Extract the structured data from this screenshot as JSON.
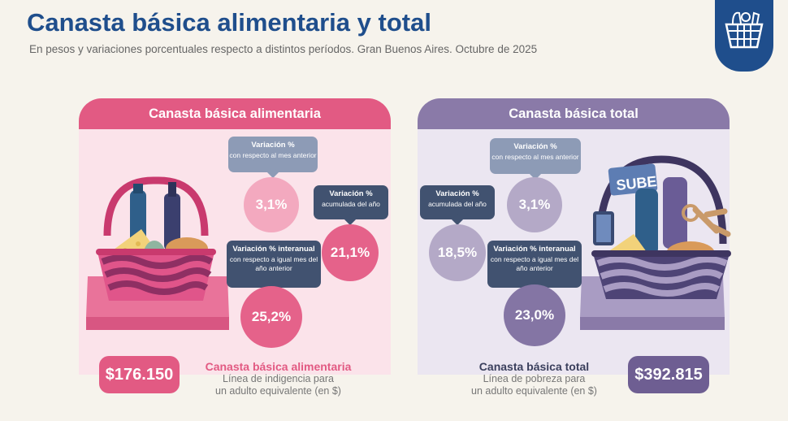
{
  "header": {
    "title": "Canasta básica alimentaria y total",
    "subtitle": "En pesos y variaciones porcentuales respecto a distintos períodos. Gran Buenos Aires. Octubre de 2025",
    "logo_icon": "basket-icon"
  },
  "colors": {
    "title_blue": "#1f4e8c",
    "pink": "#e25a83",
    "purple": "#8a7aa8",
    "tag_dark": "#415270",
    "tag_light": "#8d9bb6"
  },
  "cba": {
    "header": "Canasta básica alimentaria",
    "illustration_icon": "food-basket-icon",
    "monthly": {
      "title": "Variación %",
      "desc": "con respecto al mes anterior",
      "value": "3,1%"
    },
    "ytd": {
      "title": "Variación %",
      "desc": "acumulada del año",
      "value": "21,1%"
    },
    "yoy": {
      "title": "Variación % interanual",
      "desc": "con respecto a igual mes del año anterior",
      "value": "25,2%"
    },
    "amount": "$176.150",
    "label_title": "Canasta básica alimentaria",
    "label_sub1": "Línea de indigencia para",
    "label_sub2": "un adulto equivalente (en $)"
  },
  "cbt": {
    "header": "Canasta básica total",
    "illustration_icon": "goods-basket-icon",
    "monthly": {
      "title": "Variación %",
      "desc": "con respecto al mes anterior",
      "value": "3,1%"
    },
    "ytd": {
      "title": "Variación %",
      "desc": "acumulada del año",
      "value": "18,5%"
    },
    "yoy": {
      "title": "Variación % interanual",
      "desc": "con respecto a igual mes del año anterior",
      "value": "23,0%"
    },
    "amount": "$392.815",
    "label_title": "Canasta básica total",
    "label_sub1": "Línea de pobreza para",
    "label_sub2": "un adulto equivalente (en $)",
    "card_text": "SUBE"
  }
}
